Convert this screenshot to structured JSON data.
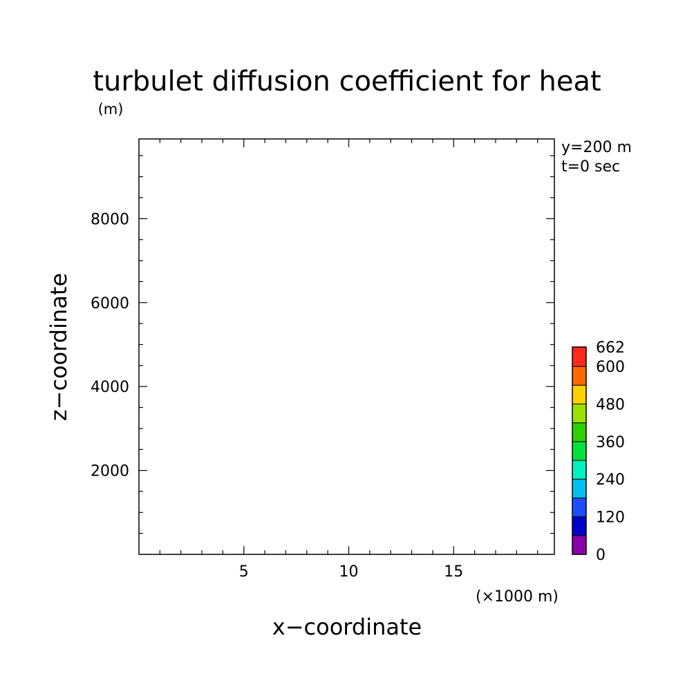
{
  "chart_data": {
    "type": "heatmap",
    "title": "turbulet diffusion coefficient for heat",
    "ylabel_unit": "(m)",
    "xlabel": "x−coordinate",
    "ylabel": "z−coordinate",
    "x_unit": "(×1000 m)",
    "annotations": [
      "y=200 m",
      "t=0 sec"
    ],
    "xlim": [
      0,
      19.8
    ],
    "ylim": [
      0,
      9900
    ],
    "x_major_ticks": [
      5,
      10,
      15
    ],
    "x_minor_step": 1,
    "y_major_ticks": [
      2000,
      4000,
      6000,
      8000
    ],
    "y_minor_step": 500,
    "field_values": "uniform (no contours visible)",
    "colorbar": {
      "min": 0,
      "max": 662,
      "tick_labels": [
        "0",
        "120",
        "240",
        "360",
        "480",
        "600",
        "662"
      ],
      "tick_values": [
        0,
        120,
        240,
        360,
        480,
        600,
        662
      ],
      "levels": [
        0,
        60,
        120,
        180,
        240,
        300,
        360,
        420,
        480,
        540,
        600,
        662
      ],
      "colors": [
        "#8a00a8",
        "#0000c8",
        "#1e4dff",
        "#00bff0",
        "#00f0c0",
        "#00e040",
        "#30d000",
        "#9ae000",
        "#ffd000",
        "#ff6a00",
        "#ff2a1a"
      ]
    }
  }
}
